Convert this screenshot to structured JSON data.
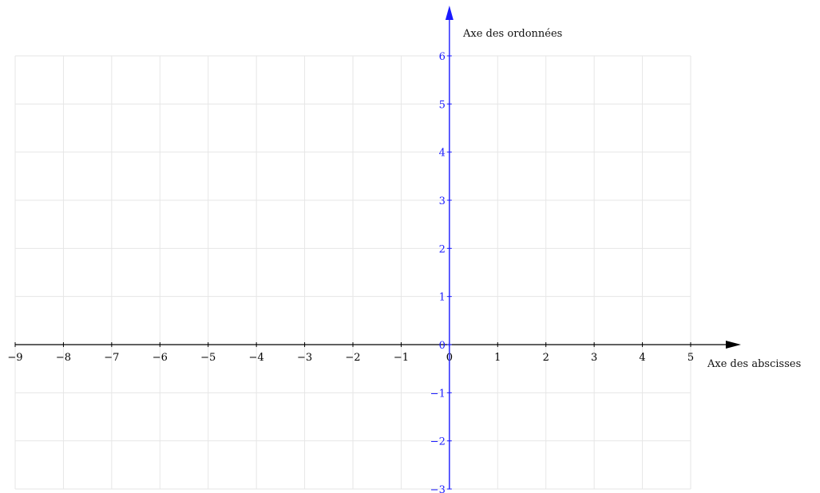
{
  "chart_data": {
    "type": "scatter",
    "title": "",
    "xlabel": "Axe des abscisses",
    "ylabel": "Axe des ordonnées",
    "xlim": [
      -9,
      5
    ],
    "ylim": [
      -3,
      6
    ],
    "x_ticks": [
      -9,
      -8,
      -7,
      -6,
      -5,
      -4,
      -3,
      -2,
      -1,
      0,
      1,
      2,
      3,
      4,
      5
    ],
    "y_ticks": [
      -3,
      -2,
      -1,
      0,
      1,
      2,
      3,
      4,
      5,
      6
    ],
    "x_tick_labels": [
      "−9",
      "−8",
      "−7",
      "−6",
      "−5",
      "−4",
      "−3",
      "−2",
      "−1",
      "0",
      "1",
      "2",
      "3",
      "4",
      "5"
    ],
    "y_tick_labels": [
      "−3",
      "−2",
      "−1",
      "0",
      "1",
      "2",
      "3",
      "4",
      "5",
      "6"
    ],
    "grid": true,
    "series": []
  },
  "colors": {
    "x_axis": "#000000",
    "y_axis": "#1a1aff",
    "grid": "#e6e6e6"
  }
}
